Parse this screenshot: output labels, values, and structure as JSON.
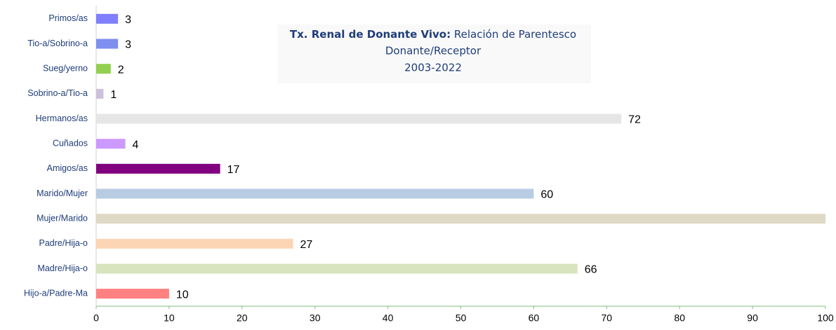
{
  "chart_data": {
    "type": "hbar",
    "title_bold": "Tx. Renal de Donante Vivo:",
    "title": "Relación de Parentesco",
    "subtitle": [
      "Donante/Receptor",
      "2003-2022"
    ],
    "categories": [
      "Primos/as",
      "Tio-a/Sobrino-a",
      "Sueg/yerno",
      "Sobrino-a/Tio-a",
      "Hermanos/as",
      "Cuñados",
      "Amigos/as",
      "Marido/Mujer",
      "Mujer/Marido",
      "Padre/Hija-o",
      "Madre/Hija-o",
      "Hijo-a/Padre-Ma"
    ],
    "values": [
      3,
      3,
      2,
      1,
      72,
      4,
      17,
      60,
      100,
      27,
      66,
      10
    ],
    "colors": [
      "#7f7fff",
      "#7f8fef",
      "#92d050",
      "#ccc0da",
      "#e6e6e6",
      "#cc99ff",
      "#800080",
      "#b8cce4",
      "#ddd9c4",
      "#fcd5b4",
      "#d8e4bc",
      "#ff8080"
    ],
    "xlim": [
      0,
      100
    ],
    "xticks": [
      0,
      10,
      20,
      30,
      40,
      50,
      60,
      70,
      80,
      90,
      100
    ],
    "grid": false
  }
}
